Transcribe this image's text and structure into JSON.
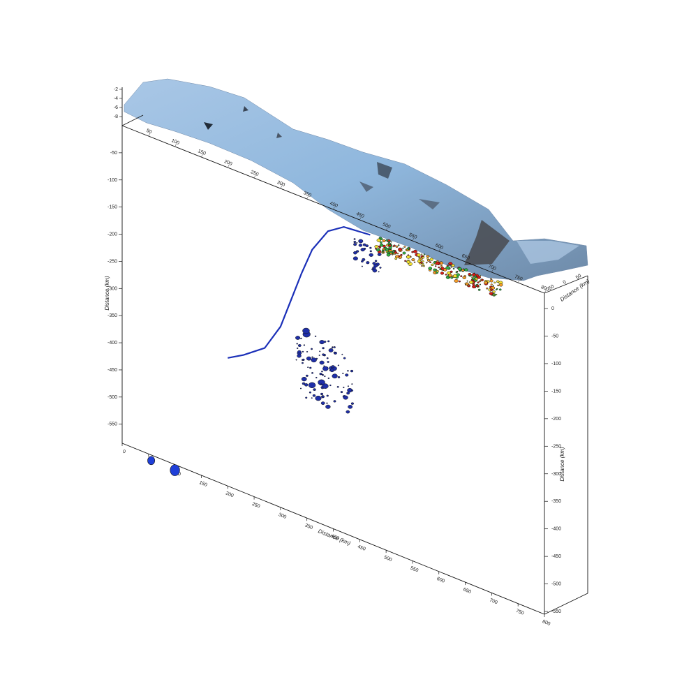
{
  "chart_data": {
    "type": "scatter",
    "subtype": "3d-perspective-cross-section",
    "x_axis": {
      "label": "Distance (km)",
      "range": [
        0,
        800
      ],
      "ticks": [
        "0",
        "50",
        "100",
        "150",
        "200",
        "250",
        "300",
        "350",
        "400",
        "450",
        "500",
        "550",
        "600",
        "650",
        "700",
        "750",
        "800"
      ]
    },
    "left_depth_axis": {
      "label": "Distance (km)",
      "range": [
        0,
        -550
      ],
      "ticks": [
        "-50",
        "-100",
        "-150",
        "-200",
        "-250",
        "-300",
        "-350",
        "-400",
        "-450",
        "-500",
        "-550"
      ]
    },
    "right_depth_axis": {
      "label": "Distance (km)",
      "range": [
        0,
        -550
      ],
      "ticks": [
        "0",
        "-50",
        "-100",
        "-150",
        "-200",
        "-250",
        "-300",
        "-350",
        "-400",
        "-450",
        "-500",
        "-550"
      ]
    },
    "back_top_ticks": [
      "50",
      "100",
      "150",
      "200",
      "250",
      "300",
      "350",
      "400",
      "450",
      "500",
      "550",
      "600",
      "650",
      "700",
      "750",
      "800"
    ],
    "across_axis": {
      "label": "Distance (km)",
      "ticks": [
        "-50",
        "0",
        "50"
      ]
    },
    "topography_axis": {
      "ticks": [
        "-2",
        "-4",
        "-6",
        "-8"
      ]
    },
    "colors": {
      "slab_line": "#1a2fb8",
      "deep_events": "#1f2fa8",
      "shallow": "#d81c14",
      "intermediate": "#f0e030",
      "mid": "#30b040",
      "topography_light": "#a8cdea",
      "topography_dark": "#3a4656"
    },
    "slab_line": [
      [
        200,
        -295
      ],
      [
        230,
        -280
      ],
      [
        270,
        -255
      ],
      [
        300,
        -210
      ],
      [
        320,
        -160
      ],
      [
        340,
        -110
      ],
      [
        360,
        -65
      ],
      [
        390,
        -25
      ],
      [
        420,
        -8
      ],
      [
        470,
        -4
      ]
    ],
    "events_legend_like": [
      {
        "x": 55,
        "z": -5,
        "r": 6
      },
      {
        "x": 100,
        "z": -5,
        "r": 8
      }
    ]
  }
}
